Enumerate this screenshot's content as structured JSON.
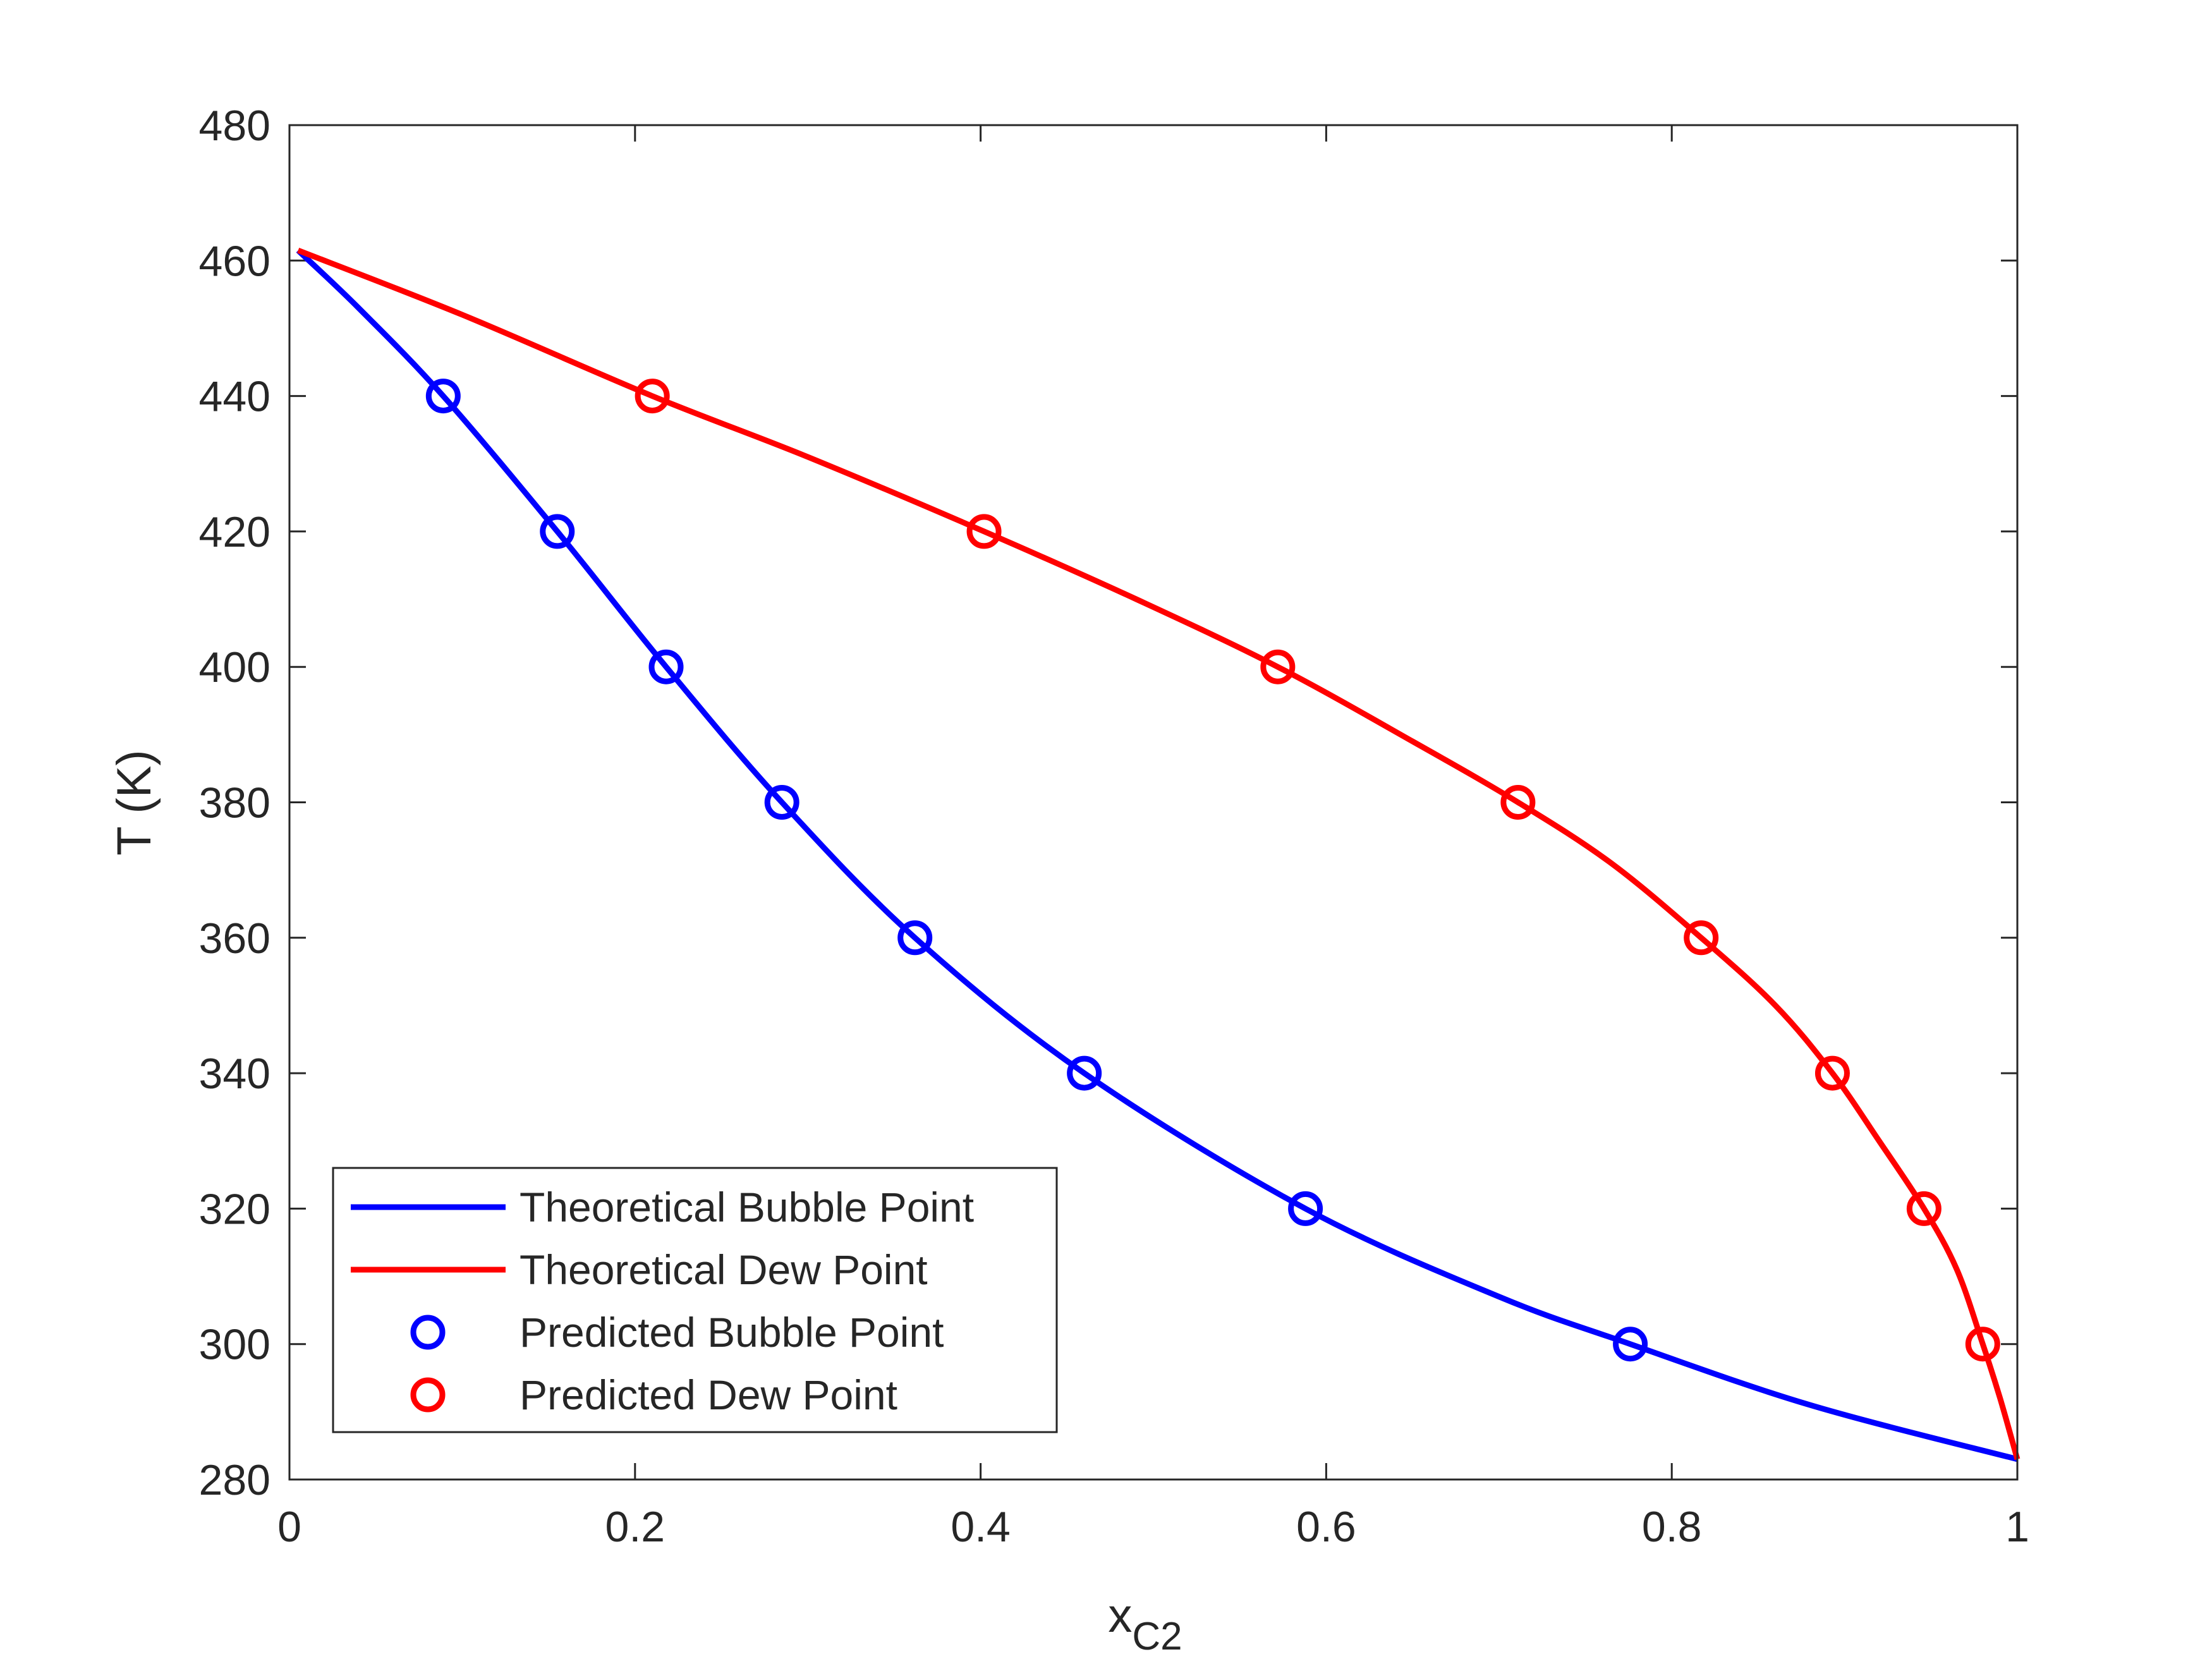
{
  "chart_data": {
    "type": "line",
    "xlabel": "x",
    "xlabel_sub": "C2",
    "ylabel": "T (K)",
    "xlim": [
      0,
      1
    ],
    "ylim": [
      280,
      480
    ],
    "xticks": [
      0,
      0.2,
      0.4,
      0.6,
      0.8,
      1
    ],
    "xtick_labels": [
      "0",
      "0.2",
      "0.4",
      "0.6",
      "0.8",
      "1"
    ],
    "yticks": [
      280,
      300,
      320,
      340,
      360,
      380,
      400,
      420,
      440,
      460,
      480
    ],
    "ytick_labels": [
      "280",
      "300",
      "320",
      "340",
      "360",
      "380",
      "400",
      "420",
      "440",
      "460",
      "480"
    ],
    "grid": false,
    "legend_position": "bottom-left",
    "series": [
      {
        "name": "Theoretical Bubble Point",
        "kind": "line",
        "color": "#0000ff",
        "x": [
          0.005,
          0.04,
          0.089,
          0.155,
          0.218,
          0.285,
          0.362,
          0.46,
          0.588,
          0.7,
          0.776,
          0.88,
          1.0
        ],
        "y": [
          461.5,
          453,
          440,
          420,
          400,
          380,
          360,
          340,
          320,
          307,
          300,
          291,
          283
        ]
      },
      {
        "name": "Theoretical Dew Point",
        "kind": "line",
        "color": "#ff0000",
        "x": [
          0.005,
          0.1,
          0.21,
          0.3,
          0.402,
          0.49,
          0.572,
          0.65,
          0.711,
          0.765,
          0.817,
          0.86,
          0.893,
          0.92,
          0.946,
          0.965,
          0.98,
          0.99,
          1.0
        ],
        "y": [
          461.5,
          452,
          440,
          431,
          420,
          410,
          400,
          389,
          380,
          371,
          360,
          350,
          340,
          330,
          320,
          311,
          300,
          292,
          283
        ]
      },
      {
        "name": "Predicted Bubble Point",
        "kind": "markers",
        "color": "#0000ff",
        "x": [
          0.089,
          0.155,
          0.218,
          0.285,
          0.362,
          0.46,
          0.588,
          0.776
        ],
        "y": [
          440,
          420,
          400,
          380,
          360,
          340,
          320,
          300
        ]
      },
      {
        "name": "Predicted Dew Point",
        "kind": "markers",
        "color": "#ff0000",
        "x": [
          0.21,
          0.402,
          0.572,
          0.711,
          0.817,
          0.893,
          0.946,
          0.98
        ],
        "y": [
          440,
          420,
          400,
          380,
          360,
          340,
          320,
          300
        ]
      }
    ]
  }
}
